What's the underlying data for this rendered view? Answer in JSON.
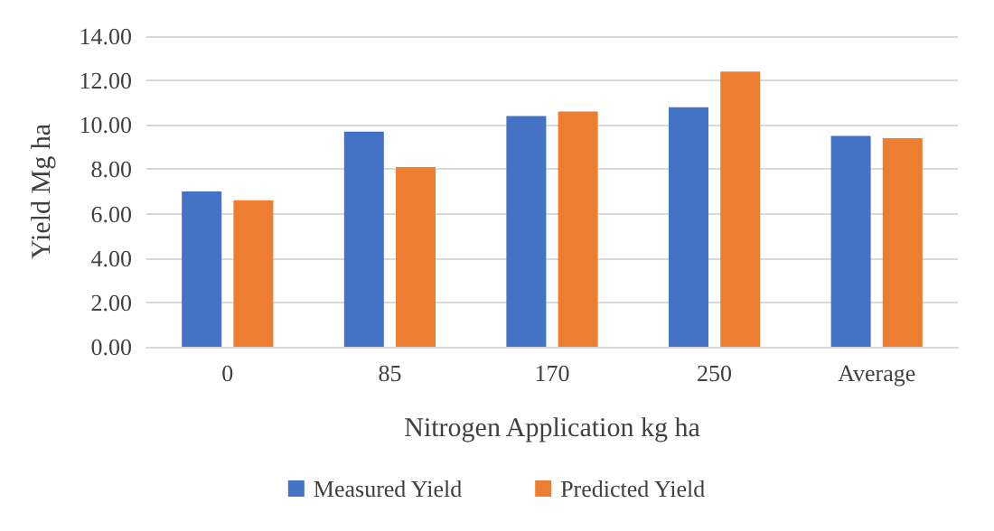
{
  "chart_data": {
    "type": "bar",
    "xlabel": "Nitrogen Application kg ha",
    "ylabel": "Yield Mg ha",
    "categories": [
      "0",
      "85",
      "170",
      "250",
      "Average"
    ],
    "series": [
      {
        "name": "Measured Yield",
        "color": "#4472c4",
        "values": [
          7.0,
          9.7,
          10.4,
          10.8,
          9.5
        ]
      },
      {
        "name": "Predicted Yield",
        "color": "#ed7d31",
        "values": [
          6.6,
          8.1,
          10.6,
          12.4,
          9.4
        ]
      }
    ],
    "ylim": [
      0,
      14
    ],
    "yticks": [
      {
        "value": 0,
        "label": "0.00"
      },
      {
        "value": 2,
        "label": "2.00"
      },
      {
        "value": 4,
        "label": "4.00"
      },
      {
        "value": 6,
        "label": "6.00"
      },
      {
        "value": 8,
        "label": "8.00"
      },
      {
        "value": 10,
        "label": "10.00"
      },
      {
        "value": 12,
        "label": "12.00"
      },
      {
        "value": 14,
        "label": "14.00"
      }
    ],
    "grid": "y",
    "legend": "bottom"
  }
}
